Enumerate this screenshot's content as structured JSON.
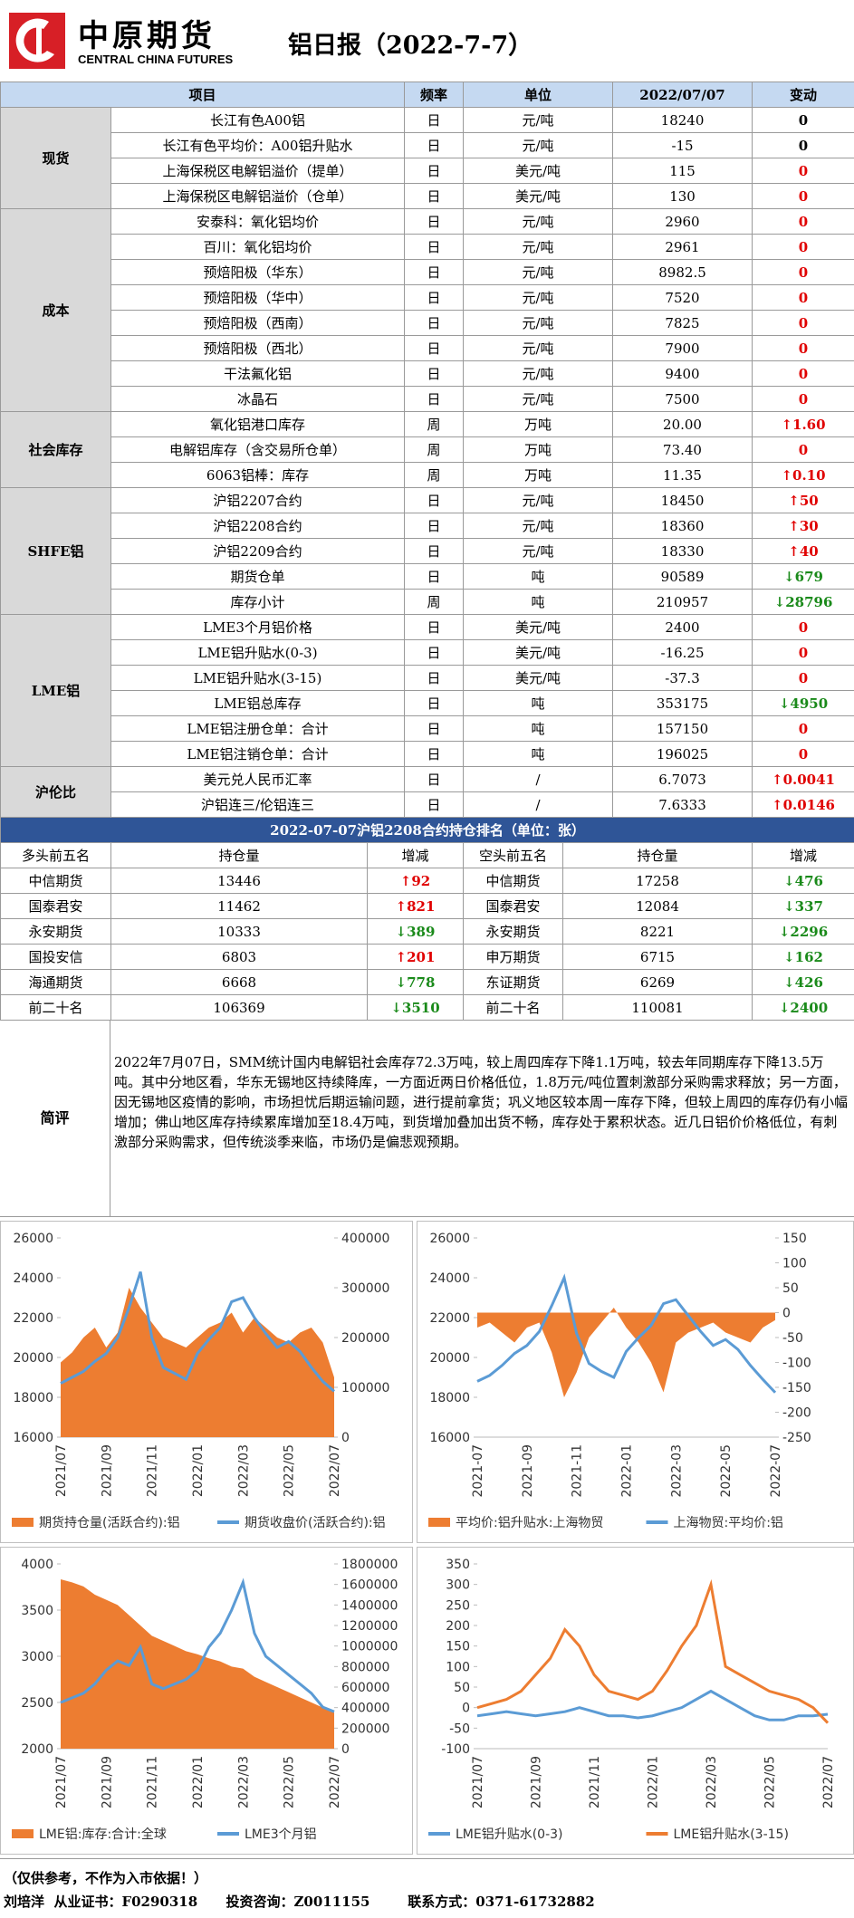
{
  "header": {
    "logo_cn": "中原期货",
    "logo_en": "CENTRAL CHINA FUTURES",
    "title": "铝日报（2022-7-7）"
  },
  "table": {
    "columns": [
      "项目",
      "频率",
      "单位",
      "2022/07/07",
      "变动"
    ],
    "groups": [
      {
        "name": "现货",
        "rows": [
          {
            "item": "长江有色A00铝",
            "freq": "日",
            "unit": "元/吨",
            "value": "18240",
            "change": "0",
            "change_color": "#000000"
          },
          {
            "item": "长江有色平均价：A00铝升贴水",
            "freq": "日",
            "unit": "元/吨",
            "value": "-15",
            "change": "0",
            "change_color": "#000000"
          },
          {
            "item": "上海保税区电解铝溢价（提单）",
            "freq": "日",
            "unit": "美元/吨",
            "value": "115",
            "change": "0",
            "change_color": "#e00000"
          },
          {
            "item": "上海保税区电解铝溢价（仓单）",
            "freq": "日",
            "unit": "美元/吨",
            "value": "130",
            "change": "0",
            "change_color": "#e00000"
          }
        ]
      },
      {
        "name": "成本",
        "rows": [
          {
            "item": "安泰科：氧化铝均价",
            "freq": "日",
            "unit": "元/吨",
            "value": "2960",
            "change": "0",
            "change_color": "#e00000"
          },
          {
            "item": "百川：氧化铝均价",
            "freq": "日",
            "unit": "元/吨",
            "value": "2961",
            "change": "0",
            "change_color": "#e00000"
          },
          {
            "item": "预焙阳极（华东）",
            "freq": "日",
            "unit": "元/吨",
            "value": "8982.5",
            "change": "0",
            "change_color": "#e00000"
          },
          {
            "item": "预焙阳极（华中）",
            "freq": "日",
            "unit": "元/吨",
            "value": "7520",
            "change": "0",
            "change_color": "#e00000"
          },
          {
            "item": "预焙阳极（西南）",
            "freq": "日",
            "unit": "元/吨",
            "value": "7825",
            "change": "0",
            "change_color": "#e00000"
          },
          {
            "item": "预焙阳极（西北）",
            "freq": "日",
            "unit": "元/吨",
            "value": "7900",
            "change": "0",
            "change_color": "#e00000"
          },
          {
            "item": "干法氟化铝",
            "freq": "日",
            "unit": "元/吨",
            "value": "9400",
            "change": "0",
            "change_color": "#e00000"
          },
          {
            "item": "冰晶石",
            "freq": "日",
            "unit": "元/吨",
            "value": "7500",
            "change": "0",
            "change_color": "#e00000"
          }
        ]
      },
      {
        "name": "社会库存",
        "rows": [
          {
            "item": "氧化铝港口库存",
            "freq": "周",
            "unit": "万吨",
            "value": "20.00",
            "change": "↑1.60",
            "change_color": "#e00000"
          },
          {
            "item": "电解铝库存（含交易所仓单）",
            "freq": "周",
            "unit": "万吨",
            "value": "73.40",
            "change": "0",
            "change_color": "#e00000"
          },
          {
            "item": "6063铝棒：库存",
            "freq": "周",
            "unit": "万吨",
            "value": "11.35",
            "change": "↑0.10",
            "change_color": "#e00000"
          }
        ]
      },
      {
        "name": "SHFE铝",
        "rows": [
          {
            "item": "沪铝2207合约",
            "freq": "日",
            "unit": "元/吨",
            "value": "18450",
            "change": "↑50",
            "change_color": "#e00000"
          },
          {
            "item": "沪铝2208合约",
            "freq": "日",
            "unit": "元/吨",
            "value": "18360",
            "change": "↑30",
            "change_color": "#e00000"
          },
          {
            "item": "沪铝2209合约",
            "freq": "日",
            "unit": "元/吨",
            "value": "18330",
            "change": "↑40",
            "change_color": "#e00000"
          },
          {
            "item": "期货仓单",
            "freq": "日",
            "unit": "吨",
            "value": "90589",
            "change": "↓679",
            "change_color": "#1a8a1a"
          },
          {
            "item": "库存小计",
            "freq": "周",
            "unit": "吨",
            "value": "210957",
            "change": "↓28796",
            "change_color": "#1a8a1a"
          }
        ]
      },
      {
        "name": "LME铝",
        "rows": [
          {
            "item": "LME3个月铝价格",
            "freq": "日",
            "unit": "美元/吨",
            "value": "2400",
            "change": "0",
            "change_color": "#e00000"
          },
          {
            "item": "LME铝升贴水(0-3)",
            "freq": "日",
            "unit": "美元/吨",
            "value": "-16.25",
            "change": "0",
            "change_color": "#e00000"
          },
          {
            "item": "LME铝升贴水(3-15)",
            "freq": "日",
            "unit": "美元/吨",
            "value": "-37.3",
            "change": "0",
            "change_color": "#e00000"
          },
          {
            "item": "LME铝总库存",
            "freq": "日",
            "unit": "吨",
            "value": "353175",
            "change": "↓4950",
            "change_color": "#1a8a1a"
          },
          {
            "item": "LME铝注册仓单：合计",
            "freq": "日",
            "unit": "吨",
            "value": "157150",
            "change": "0",
            "change_color": "#e00000"
          },
          {
            "item": "LME铝注销仓单：合计",
            "freq": "日",
            "unit": "吨",
            "value": "196025",
            "change": "0",
            "change_color": "#e00000"
          }
        ]
      },
      {
        "name": "沪伦比",
        "rows": [
          {
            "item": "美元兑人民币汇率",
            "freq": "日",
            "unit": "/",
            "value": "6.7073",
            "change": "↑0.0041",
            "change_color": "#e00000"
          },
          {
            "item": "沪铝连三/伦铝连三",
            "freq": "日",
            "unit": "/",
            "value": "7.6333",
            "change": "↑0.0146",
            "change_color": "#e00000"
          }
        ]
      }
    ]
  },
  "ranking": {
    "title": "2022-07-07沪铝2208合约持仓排名（单位：张）",
    "columns": [
      "多头前五名",
      "持仓量",
      "增减",
      "空头前五名",
      "持仓量",
      "增减"
    ],
    "rows": [
      {
        "long": "中信期货",
        "long_oi": "13446",
        "long_chg": "↑92",
        "long_color": "#e00000",
        "short": "中信期货",
        "short_oi": "17258",
        "short_chg": "↓476",
        "short_color": "#1a8a1a"
      },
      {
        "long": "国泰君安",
        "long_oi": "11462",
        "long_chg": "↑821",
        "long_color": "#e00000",
        "short": "国泰君安",
        "short_oi": "12084",
        "short_chg": "↓337",
        "short_color": "#1a8a1a"
      },
      {
        "long": "永安期货",
        "long_oi": "10333",
        "long_chg": "↓389",
        "long_color": "#1a8a1a",
        "short": "永安期货",
        "short_oi": "8221",
        "short_chg": "↓2296",
        "short_color": "#1a8a1a"
      },
      {
        "long": "国投安信",
        "long_oi": "6803",
        "long_chg": "↑201",
        "long_color": "#e00000",
        "short": "申万期货",
        "short_oi": "6715",
        "short_chg": "↓162",
        "short_color": "#1a8a1a"
      },
      {
        "long": "海通期货",
        "long_oi": "6668",
        "long_chg": "↓778",
        "long_color": "#1a8a1a",
        "short": "东证期货",
        "short_oi": "6269",
        "short_chg": "↓426",
        "short_color": "#1a8a1a"
      },
      {
        "long": "前二十名",
        "long_oi": "106369",
        "long_chg": "↓3510",
        "long_color": "#1a8a1a",
        "short": "前二十名",
        "short_oi": "110081",
        "short_chg": "↓2400",
        "short_color": "#1a8a1a"
      }
    ]
  },
  "comment": {
    "label": "简评",
    "text": "2022年7月07日，SMM统计国内电解铝社会库存72.3万吨，较上周四库存下降1.1万吨，较去年同期库存下降13.5万吨。其中分地区看，华东无锡地区持续降库，一方面近两日价格低位，1.8万元/吨位置刺激部分采购需求释放；另一方面，因无锡地区疫情的影响，市场担忧后期运输问题，进行提前拿货；巩义地区较本周一库存下降，但较上周四的库存仍有小幅增加；佛山地区库存持续累库增加至18.4万吨，到货增加叠加出货不畅，库存处于累积状态。近几日铝价价格低位，有刺激部分采购需求，但传统淡季来临，市场仍是偏悲观预期。"
  },
  "chart_data": [
    {
      "type": "combo",
      "categories": [
        "2021/07",
        null,
        null,
        null,
        "2021/09",
        null,
        null,
        null,
        "2021/11",
        null,
        null,
        null,
        "2022/01",
        null,
        null,
        null,
        "2022/03",
        null,
        null,
        null,
        "2022/05",
        null,
        null,
        null,
        "2022/07"
      ],
      "series": [
        {
          "name": "期货持仓量(活跃合约):铝",
          "type": "area",
          "color": "#ed7d31",
          "axis": "y2",
          "values": [
            150000,
            170000,
            200000,
            220000,
            180000,
            210000,
            300000,
            260000,
            230000,
            200000,
            190000,
            180000,
            200000,
            220000,
            230000,
            250000,
            210000,
            240000,
            220000,
            200000,
            190000,
            210000,
            220000,
            190000,
            120000
          ]
        },
        {
          "name": "期货收盘价(活跃合约):铝",
          "type": "line",
          "color": "#5b9bd5",
          "values": [
            18700,
            19000,
            19300,
            19800,
            20200,
            21000,
            22500,
            24300,
            21000,
            19500,
            19200,
            18900,
            20200,
            20900,
            21500,
            22800,
            23000,
            22000,
            21200,
            20500,
            20800,
            20300,
            19500,
            18800,
            18300
          ]
        }
      ],
      "ylim": [
        16000,
        26000
      ],
      "yticks": [
        16000,
        18000,
        20000,
        22000,
        24000,
        26000
      ],
      "y2lim": [
        0,
        400000
      ],
      "y2ticks": [
        0,
        100000,
        200000,
        300000,
        400000
      ]
    },
    {
      "type": "combo",
      "categories": [
        "2021-07",
        null,
        null,
        null,
        "2021-09",
        null,
        null,
        null,
        "2021-11",
        null,
        null,
        null,
        "2022-01",
        null,
        null,
        null,
        "2022-03",
        null,
        null,
        null,
        "2022-05",
        null,
        null,
        null,
        "2022-07"
      ],
      "series": [
        {
          "name": "平均价:铝升贴水:上海物贸",
          "type": "area",
          "color": "#ed7d31",
          "axis": "y2",
          "values": [
            -30,
            -20,
            -40,
            -60,
            -30,
            -20,
            -80,
            -170,
            -120,
            -50,
            -20,
            10,
            -30,
            -60,
            -100,
            -160,
            -60,
            -40,
            -30,
            -20,
            -40,
            -50,
            -60,
            -30,
            -15
          ]
        },
        {
          "name": "上海物贸:平均价:铝",
          "type": "line",
          "color": "#5b9bd5",
          "values": [
            18800,
            19100,
            19600,
            20200,
            20600,
            21300,
            22600,
            24000,
            21200,
            19700,
            19300,
            19000,
            20300,
            21000,
            21600,
            22700,
            22900,
            22100,
            21300,
            20600,
            20900,
            20400,
            19600,
            18900,
            18240
          ]
        }
      ],
      "ylim": [
        16000,
        26000
      ],
      "yticks": [
        16000,
        18000,
        20000,
        22000,
        24000,
        26000
      ],
      "y2lim": [
        -250,
        150
      ],
      "y2ticks": [
        -250,
        -200,
        -150,
        -100,
        -50,
        0,
        50,
        100,
        150
      ]
    },
    {
      "type": "combo",
      "categories": [
        "2021/07",
        null,
        null,
        null,
        "2021/09",
        null,
        null,
        null,
        "2021/11",
        null,
        null,
        null,
        "2022/01",
        null,
        null,
        null,
        "2022/03",
        null,
        null,
        null,
        "2022/05",
        null,
        null,
        null,
        "2022/07"
      ],
      "series": [
        {
          "name": "LME铝:库存:合计:全球",
          "type": "area",
          "color": "#ed7d31",
          "axis": "y2",
          "values": [
            1650000,
            1620000,
            1580000,
            1500000,
            1450000,
            1400000,
            1300000,
            1200000,
            1100000,
            1050000,
            1000000,
            950000,
            920000,
            880000,
            850000,
            800000,
            780000,
            700000,
            650000,
            600000,
            550000,
            500000,
            450000,
            400000,
            353175
          ]
        },
        {
          "name": "LME3个月铝",
          "type": "line",
          "color": "#5b9bd5",
          "values": [
            2500,
            2550,
            2600,
            2700,
            2850,
            2950,
            2900,
            3100,
            2700,
            2650,
            2700,
            2750,
            2850,
            3100,
            3250,
            3500,
            3800,
            3250,
            3000,
            2900,
            2800,
            2700,
            2600,
            2450,
            2400
          ]
        }
      ],
      "ylim": [
        2000,
        4000
      ],
      "yticks": [
        2000,
        2500,
        3000,
        3500,
        4000
      ],
      "y2lim": [
        0,
        1800000
      ],
      "y2ticks": [
        0,
        200000,
        400000,
        600000,
        800000,
        1000000,
        1200000,
        1400000,
        1600000,
        1800000
      ]
    },
    {
      "type": "line",
      "categories": [
        "2021/07",
        null,
        null,
        null,
        "2021/09",
        null,
        null,
        null,
        "2021/11",
        null,
        null,
        null,
        "2022/01",
        null,
        null,
        null,
        "2022/03",
        null,
        null,
        null,
        "2022/05",
        null,
        null,
        null,
        "2022/07"
      ],
      "series": [
        {
          "name": "LME铝升贴水(0-3)",
          "type": "line",
          "color": "#5b9bd5",
          "values": [
            -20,
            -15,
            -10,
            -15,
            -20,
            -15,
            -10,
            0,
            -10,
            -20,
            -20,
            -25,
            -20,
            -10,
            0,
            20,
            40,
            20,
            0,
            -20,
            -30,
            -30,
            -20,
            -20,
            -16.25
          ]
        },
        {
          "name": "LME铝升贴水(3-15)",
          "type": "line",
          "color": "#ed7d31",
          "values": [
            0,
            10,
            20,
            40,
            80,
            120,
            190,
            150,
            80,
            40,
            30,
            20,
            40,
            90,
            150,
            200,
            300,
            100,
            80,
            60,
            40,
            30,
            20,
            0,
            -37.3
          ]
        }
      ],
      "ylim": [
        -100,
        350
      ],
      "yticks": [
        -100,
        -50,
        0,
        50,
        100,
        150,
        200,
        250,
        300,
        350
      ]
    }
  ],
  "footer": {
    "note": "（仅供参考，不作为入市依据！）",
    "contact": "刘培洋  从业证书：F0290318      投资咨询：Z0011155        联系方式：0371-61732882"
  }
}
